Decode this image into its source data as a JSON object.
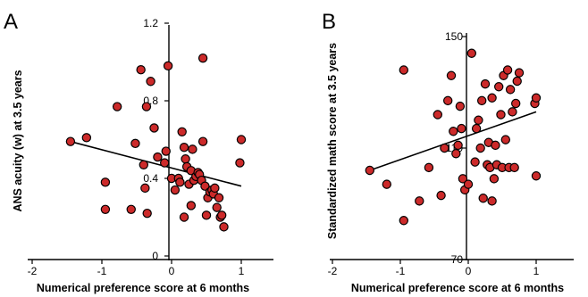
{
  "chart_data": [
    {
      "panel": "A",
      "type": "scatter",
      "xlabel": "Numerical preference score at 6 months",
      "ylabel": "ANS acuity (w) at 3.5 years",
      "xlim": [
        -2,
        1.5
      ],
      "ylim": [
        0,
        1.2
      ],
      "xticks": [
        "-2",
        "-1",
        "0",
        "1"
      ],
      "yticks": [
        "0",
        "0.4",
        "0.8",
        "1.2"
      ],
      "colors": {
        "point_fill": "#cc2a2a",
        "point_stroke": "#000000",
        "line": "#000000"
      },
      "trendline": {
        "x": [
          -1.45,
          1.0
        ],
        "y": [
          0.59,
          0.36
        ]
      },
      "points": [
        {
          "x": -1.45,
          "y": 0.59
        },
        {
          "x": -1.22,
          "y": 0.61
        },
        {
          "x": -0.95,
          "y": 0.38
        },
        {
          "x": -0.95,
          "y": 0.24
        },
        {
          "x": -0.78,
          "y": 0.77
        },
        {
          "x": -0.58,
          "y": 0.24
        },
        {
          "x": -0.52,
          "y": 0.58
        },
        {
          "x": -0.44,
          "y": 0.96
        },
        {
          "x": -0.4,
          "y": 0.47
        },
        {
          "x": -0.38,
          "y": 0.35
        },
        {
          "x": -0.36,
          "y": 0.77
        },
        {
          "x": -0.35,
          "y": 0.22
        },
        {
          "x": -0.3,
          "y": 0.9
        },
        {
          "x": -0.25,
          "y": 0.66
        },
        {
          "x": -0.2,
          "y": 0.51
        },
        {
          "x": -0.1,
          "y": 0.48
        },
        {
          "x": -0.08,
          "y": 0.54
        },
        {
          "x": -0.05,
          "y": 0.98
        },
        {
          "x": 0.0,
          "y": 0.4
        },
        {
          "x": 0.05,
          "y": 0.34
        },
        {
          "x": 0.1,
          "y": 0.4
        },
        {
          "x": 0.12,
          "y": 0.38
        },
        {
          "x": 0.15,
          "y": 0.64
        },
        {
          "x": 0.18,
          "y": 0.56
        },
        {
          "x": 0.18,
          "y": 0.2
        },
        {
          "x": 0.2,
          "y": 0.5
        },
        {
          "x": 0.22,
          "y": 0.46
        },
        {
          "x": 0.25,
          "y": 0.37
        },
        {
          "x": 0.28,
          "y": 0.44
        },
        {
          "x": 0.28,
          "y": 0.26
        },
        {
          "x": 0.3,
          "y": 0.55
        },
        {
          "x": 0.32,
          "y": 0.39
        },
        {
          "x": 0.35,
          "y": 0.41
        },
        {
          "x": 0.38,
          "y": 0.43
        },
        {
          "x": 0.4,
          "y": 0.42
        },
        {
          "x": 0.43,
          "y": 0.39
        },
        {
          "x": 0.45,
          "y": 1.02
        },
        {
          "x": 0.45,
          "y": 0.59
        },
        {
          "x": 0.48,
          "y": 0.36
        },
        {
          "x": 0.5,
          "y": 0.21
        },
        {
          "x": 0.52,
          "y": 0.3
        },
        {
          "x": 0.55,
          "y": 0.33
        },
        {
          "x": 0.58,
          "y": 0.34
        },
        {
          "x": 0.6,
          "y": 0.32
        },
        {
          "x": 0.62,
          "y": 0.35
        },
        {
          "x": 0.65,
          "y": 0.25
        },
        {
          "x": 0.68,
          "y": 0.3
        },
        {
          "x": 0.7,
          "y": 0.2
        },
        {
          "x": 0.72,
          "y": 0.21
        },
        {
          "x": 0.75,
          "y": 0.15
        },
        {
          "x": 0.98,
          "y": 0.48
        },
        {
          "x": 1.0,
          "y": 0.6
        }
      ]
    },
    {
      "panel": "B",
      "type": "scatter",
      "xlabel": "Numerical preference score at 6 months",
      "ylabel": "Standardized math score at 3.5 years",
      "xlim": [
        -2,
        1.5
      ],
      "ylim": [
        70,
        150
      ],
      "xticks": [
        "-2",
        "-1",
        "0",
        "1"
      ],
      "yticks": [
        "70",
        "110",
        "150"
      ],
      "colors": {
        "point_fill": "#cc2a2a",
        "point_stroke": "#000000",
        "line": "#000000"
      },
      "trendline": {
        "x": [
          -1.45,
          1.0
        ],
        "y": [
          102,
          123
        ]
      },
      "points": [
        {
          "x": -1.45,
          "y": 102
        },
        {
          "x": -1.2,
          "y": 97
        },
        {
          "x": -0.95,
          "y": 138
        },
        {
          "x": -0.95,
          "y": 84
        },
        {
          "x": -0.72,
          "y": 91
        },
        {
          "x": -0.58,
          "y": 103
        },
        {
          "x": -0.45,
          "y": 122
        },
        {
          "x": -0.4,
          "y": 93
        },
        {
          "x": -0.35,
          "y": 110
        },
        {
          "x": -0.3,
          "y": 127
        },
        {
          "x": -0.25,
          "y": 136
        },
        {
          "x": -0.22,
          "y": 116
        },
        {
          "x": -0.18,
          "y": 108
        },
        {
          "x": -0.15,
          "y": 111
        },
        {
          "x": -0.12,
          "y": 125
        },
        {
          "x": -0.1,
          "y": 117
        },
        {
          "x": -0.08,
          "y": 99
        },
        {
          "x": -0.05,
          "y": 95
        },
        {
          "x": 0.0,
          "y": 97
        },
        {
          "x": 0.05,
          "y": 144
        },
        {
          "x": 0.1,
          "y": 105
        },
        {
          "x": 0.12,
          "y": 117
        },
        {
          "x": 0.15,
          "y": 120
        },
        {
          "x": 0.18,
          "y": 110
        },
        {
          "x": 0.2,
          "y": 127
        },
        {
          "x": 0.22,
          "y": 92
        },
        {
          "x": 0.25,
          "y": 133
        },
        {
          "x": 0.28,
          "y": 104
        },
        {
          "x": 0.3,
          "y": 112
        },
        {
          "x": 0.32,
          "y": 103
        },
        {
          "x": 0.35,
          "y": 128
        },
        {
          "x": 0.35,
          "y": 91
        },
        {
          "x": 0.38,
          "y": 99
        },
        {
          "x": 0.4,
          "y": 111
        },
        {
          "x": 0.42,
          "y": 104
        },
        {
          "x": 0.45,
          "y": 132
        },
        {
          "x": 0.48,
          "y": 122
        },
        {
          "x": 0.5,
          "y": 103
        },
        {
          "x": 0.52,
          "y": 136
        },
        {
          "x": 0.55,
          "y": 113
        },
        {
          "x": 0.58,
          "y": 138
        },
        {
          "x": 0.6,
          "y": 103
        },
        {
          "x": 0.62,
          "y": 131
        },
        {
          "x": 0.65,
          "y": 123
        },
        {
          "x": 0.68,
          "y": 103
        },
        {
          "x": 0.7,
          "y": 126
        },
        {
          "x": 0.72,
          "y": 134
        },
        {
          "x": 0.75,
          "y": 137
        },
        {
          "x": 0.98,
          "y": 126
        },
        {
          "x": 1.0,
          "y": 100
        },
        {
          "x": 1.0,
          "y": 128
        }
      ]
    }
  ]
}
